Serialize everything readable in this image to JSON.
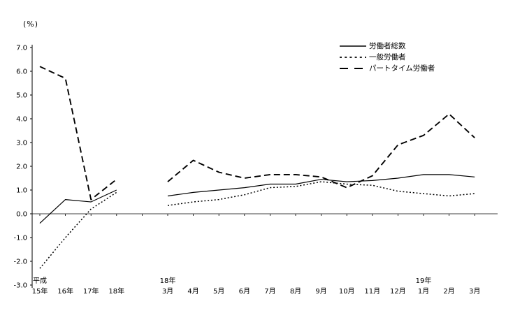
{
  "chart_data": {
    "type": "line",
    "title": "",
    "unit_label": "(%)",
    "ylim": [
      -3.0,
      7.0
    ],
    "ytick_step": 1.0,
    "ytick_labels": [
      "7.0",
      "6.0",
      "5.0",
      "4.0",
      "3.0",
      "2.0",
      "1.0",
      "0.0",
      "-1.0",
      "-2.0",
      "-3.0"
    ],
    "grid": false,
    "legend_position": "top-right",
    "line_color": "#000000",
    "x_axis": {
      "annual_labels": [
        "15年",
        "16年",
        "17年",
        "18年"
      ],
      "monthly_labels": [
        "3月",
        "4月",
        "5月",
        "6月",
        "7月",
        "8月",
        "9月",
        "10月",
        "11月",
        "12月",
        "1月",
        "2月",
        "3月"
      ],
      "top_labels": [
        {
          "slot": 0,
          "text": "平成"
        },
        {
          "slot": 5,
          "text": "18年"
        },
        {
          "slot": 15,
          "text": "19年"
        }
      ]
    },
    "series": [
      {
        "name": "労働者総数",
        "style": "solid",
        "annual": [
          -0.4,
          0.6,
          0.5,
          1.0
        ],
        "monthly": [
          0.75,
          0.9,
          1.0,
          1.1,
          1.25,
          1.25,
          1.45,
          1.35,
          1.4,
          1.5,
          1.65,
          1.65,
          1.55
        ]
      },
      {
        "name": "一般労働者",
        "style": "dotted",
        "annual": [
          -2.3,
          -1.0,
          0.2,
          0.9
        ],
        "monthly": [
          0.35,
          0.5,
          0.6,
          0.8,
          1.1,
          1.15,
          1.35,
          1.25,
          1.2,
          0.95,
          0.85,
          0.75,
          0.85
        ]
      },
      {
        "name": "パートタイム労働者",
        "style": "dashed",
        "annual": [
          6.2,
          5.7,
          0.6,
          1.45
        ],
        "monthly": [
          1.35,
          2.25,
          1.75,
          1.5,
          1.65,
          1.65,
          1.55,
          1.1,
          1.6,
          2.9,
          3.3,
          4.2,
          3.2
        ]
      }
    ]
  }
}
